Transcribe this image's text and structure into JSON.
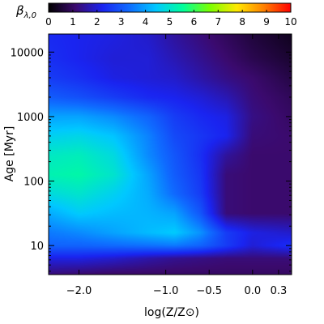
{
  "chart_data": {
    "type": "heatmap",
    "colorbar": {
      "label_symbol": "β",
      "label_subscript": "λ,0",
      "ticks": [
        "0",
        "1",
        "2",
        "3",
        "4",
        "5",
        "6",
        "7",
        "8",
        "9",
        "10"
      ],
      "range": [
        0,
        10
      ],
      "colormap": [
        "#000000",
        "#3b0a6e",
        "#1a24f0",
        "#0f6cff",
        "#00c8ff",
        "#00ff9a",
        "#7cff00",
        "#ffe800",
        "#ff8000",
        "#ff0000"
      ]
    },
    "x_axis": {
      "title": "log(Z/Z⊙)",
      "range": [
        -2.35,
        0.45
      ],
      "ticks": [
        {
          "value": -2.0,
          "label": "−2.0"
        },
        {
          "value": -1.0,
          "label": "−1.0"
        },
        {
          "value": -0.5,
          "label": "−0.5"
        },
        {
          "value": 0.0,
          "label": "0.0"
        },
        {
          "value": 0.3,
          "label": "0.3"
        }
      ]
    },
    "y_axis": {
      "title": "Age [Myr]",
      "scale": "log",
      "range_log10": [
        0.55,
        4.28
      ],
      "ticks": [
        {
          "value": 10,
          "label": "10"
        },
        {
          "value": 100,
          "label": "100"
        },
        {
          "value": 1000,
          "label": "1000"
        },
        {
          "value": 10000,
          "label": "10000"
        }
      ]
    },
    "grid": {
      "x_log_z": [
        -2.35,
        -2.0,
        -1.6,
        -1.2,
        -0.9,
        -0.6,
        -0.3,
        0.0,
        0.45
      ],
      "y_log_age": [
        0.55,
        0.8,
        1.0,
        1.2,
        1.5,
        1.8,
        2.1,
        2.4,
        2.7,
        3.0,
        3.3,
        3.6,
        3.9,
        4.28
      ],
      "beta": [
        [
          1.2,
          1.1,
          1.0,
          1.0,
          1.0,
          1.0,
          1.0,
          1.0,
          1.0
        ],
        [
          2.1,
          2.1,
          1.9,
          1.6,
          1.4,
          1.3,
          1.2,
          1.2,
          1.2
        ],
        [
          3.2,
          3.2,
          3.3,
          3.4,
          3.5,
          3.2,
          2.6,
          2.0,
          2.4
        ],
        [
          3.5,
          3.7,
          4.0,
          4.3,
          4.5,
          3.8,
          2.6,
          2.1,
          1.9
        ],
        [
          4.1,
          4.5,
          4.3,
          4.2,
          4.0,
          3.0,
          1.2,
          1.1,
          1.1
        ],
        [
          4.8,
          5.0,
          4.6,
          4.1,
          3.3,
          2.6,
          1.2,
          1.1,
          1.1
        ],
        [
          5.3,
          5.4,
          5.0,
          4.0,
          3.1,
          2.5,
          1.2,
          1.1,
          1.1
        ],
        [
          5.1,
          5.2,
          4.8,
          3.7,
          3.0,
          2.4,
          1.5,
          1.1,
          1.1
        ],
        [
          4.6,
          4.7,
          4.4,
          3.6,
          2.8,
          2.5,
          2.2,
          1.2,
          1.1
        ],
        [
          4.0,
          4.0,
          3.7,
          3.2,
          2.6,
          2.3,
          2.1,
          1.3,
          1.0
        ],
        [
          3.1,
          2.9,
          2.6,
          2.3,
          2.2,
          2.0,
          1.7,
          1.2,
          0.9
        ],
        [
          2.6,
          2.4,
          2.1,
          2.0,
          1.9,
          1.6,
          1.3,
          1.1,
          0.7
        ],
        [
          2.4,
          2.2,
          2.0,
          2.0,
          1.7,
          1.4,
          1.1,
          0.8,
          0.5
        ],
        [
          2.3,
          2.2,
          2.1,
          1.9,
          1.5,
          1.2,
          0.9,
          0.6,
          0.3
        ]
      ]
    }
  }
}
